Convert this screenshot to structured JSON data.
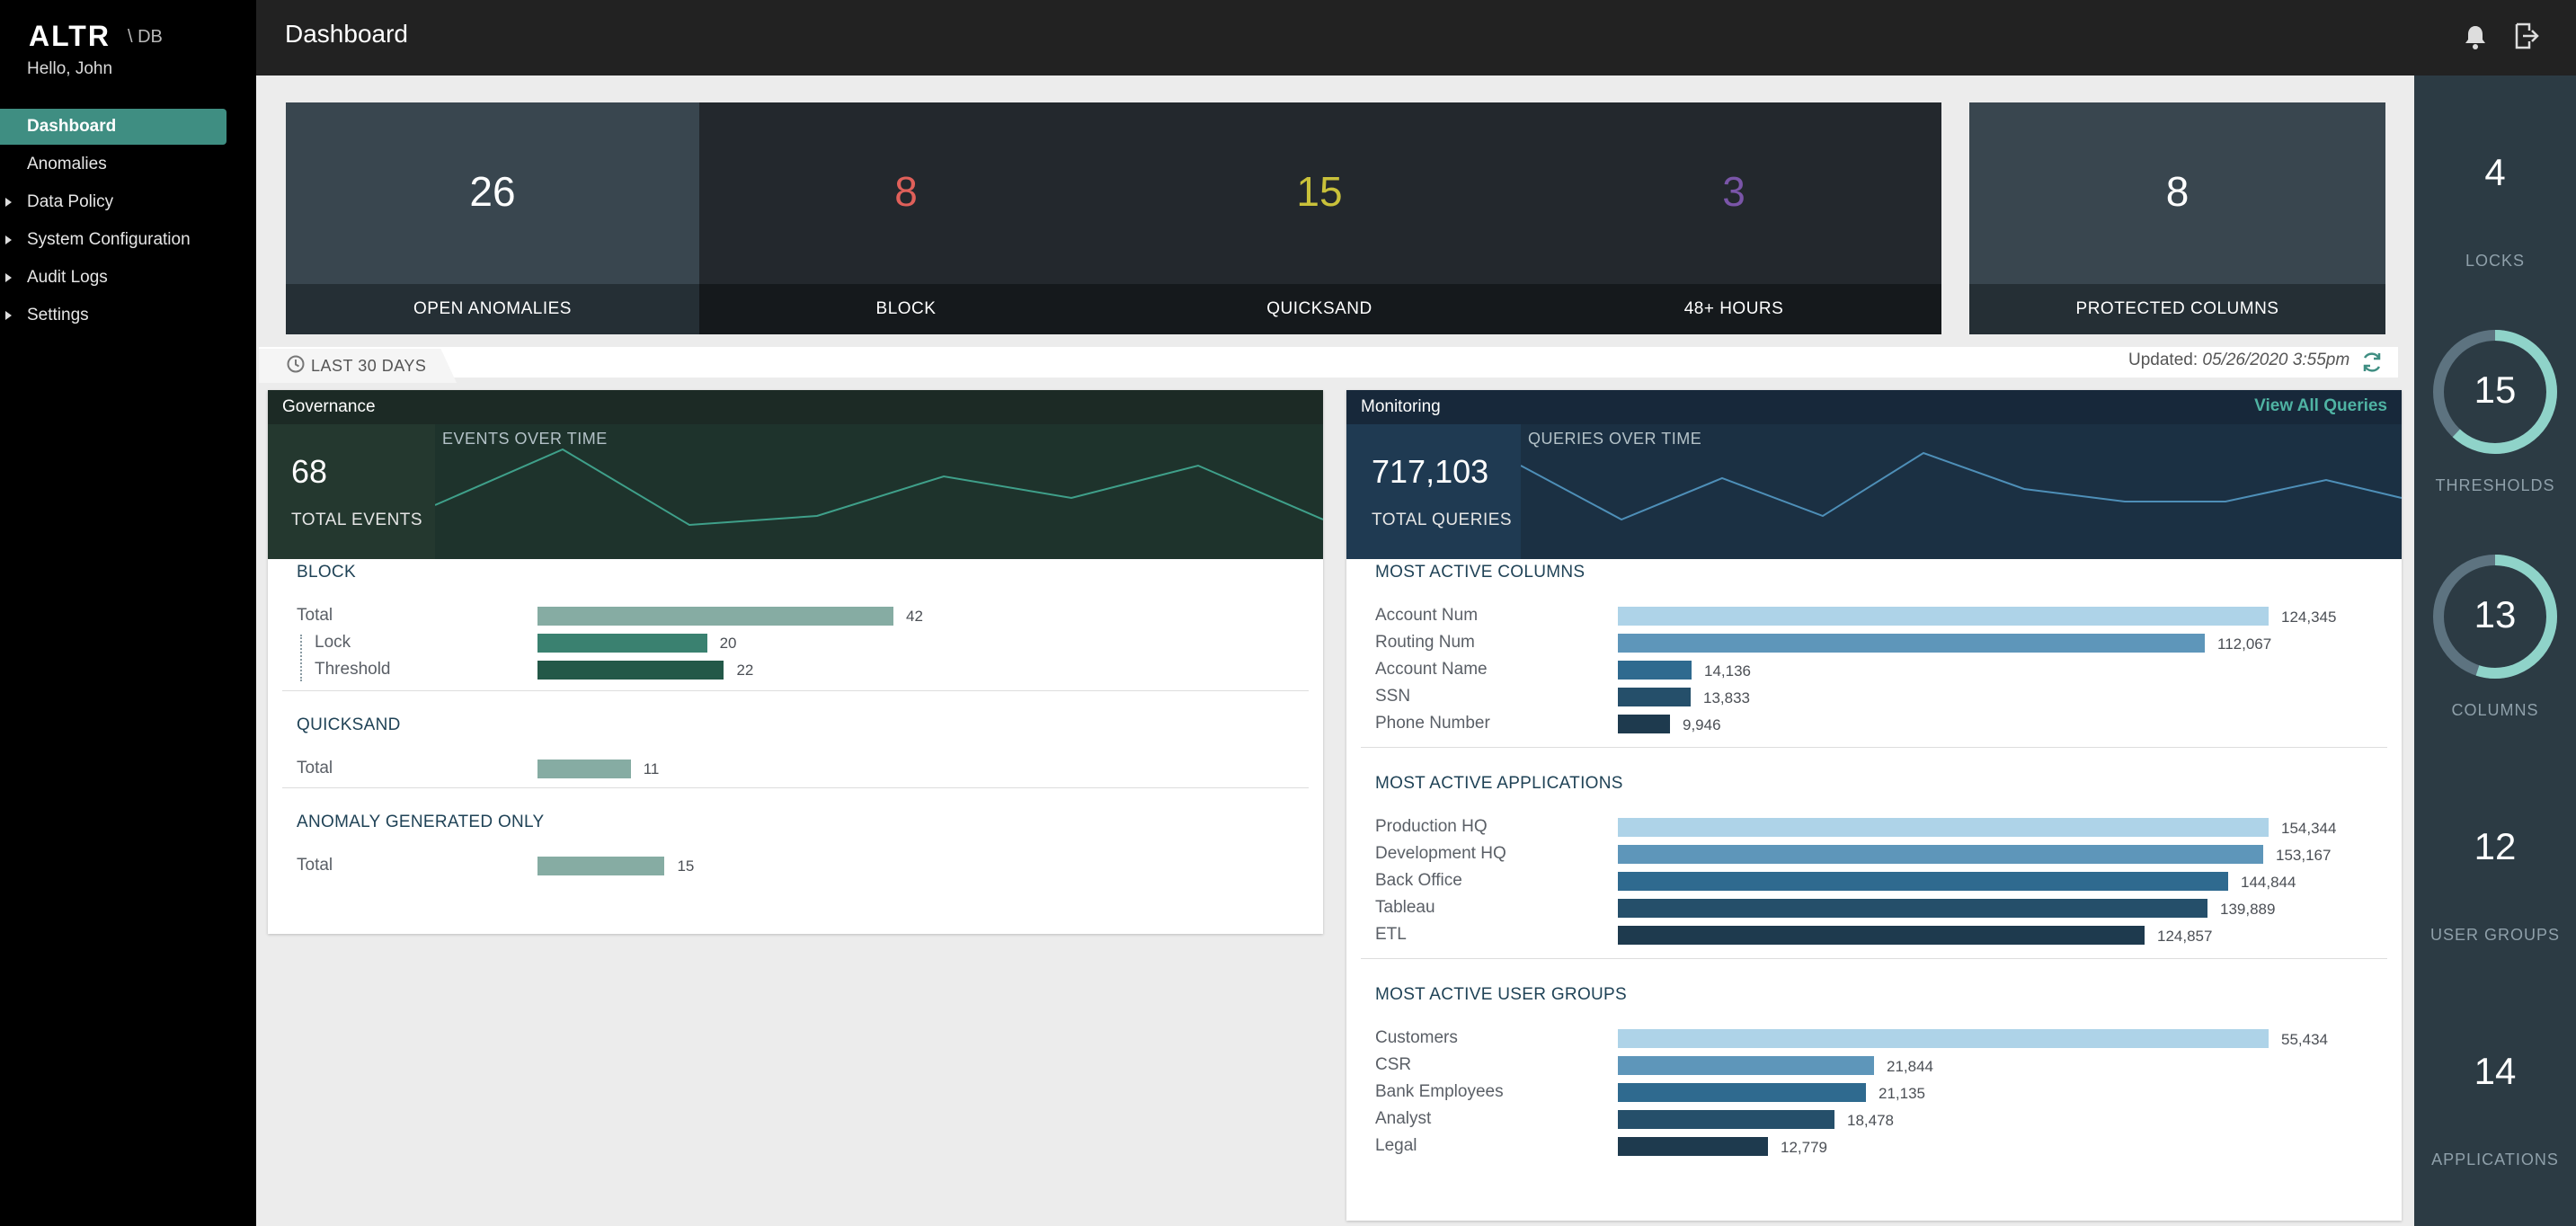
{
  "app": {
    "logo": "ALTR",
    "logo_suffix": "\\ DB",
    "greeting": "Hello, John",
    "page_title": "Dashboard"
  },
  "sidebar": {
    "items": [
      {
        "label": "Dashboard",
        "active": true,
        "expandable": false
      },
      {
        "label": "Anomalies",
        "active": false,
        "expandable": false
      },
      {
        "label": "Data Policy",
        "active": false,
        "expandable": true
      },
      {
        "label": "System Configuration",
        "active": false,
        "expandable": true
      },
      {
        "label": "Audit Logs",
        "active": false,
        "expandable": true
      },
      {
        "label": "Settings",
        "active": false,
        "expandable": true
      }
    ]
  },
  "kpis": {
    "open_anomalies": {
      "value": "26",
      "label": "OPEN ANOMALIES"
    },
    "block": {
      "value": "8",
      "label": "BLOCK",
      "color": "#e0605a"
    },
    "quicksand": {
      "value": "15",
      "label": "QUICKSAND",
      "color": "#c9c13a"
    },
    "hours48": {
      "value": "3",
      "label": "48+ HOURS",
      "color": "#7a55a8"
    },
    "protected_columns": {
      "value": "8",
      "label": "PROTECTED COLUMNS"
    }
  },
  "range": {
    "label": "LAST 30 DAYS",
    "updated_label": "Updated:",
    "updated_value": "05/26/2020 3:55pm"
  },
  "governance": {
    "title": "Governance",
    "total": "68",
    "total_label": "TOTAL EVENTS",
    "chart_label": "EVENTS OVER TIME",
    "sections": [
      {
        "title": "BLOCK",
        "rows": [
          {
            "label": "Total",
            "value": 42
          },
          {
            "label": "Lock",
            "value": 20
          },
          {
            "label": "Threshold",
            "value": 22
          }
        ]
      },
      {
        "title": "QUICKSAND",
        "rows": [
          {
            "label": "Total",
            "value": 11
          }
        ]
      },
      {
        "title": "ANOMALY GENERATED ONLY",
        "rows": [
          {
            "label": "Total",
            "value": 15
          }
        ]
      }
    ]
  },
  "monitoring": {
    "title": "Monitoring",
    "link": "View All Queries",
    "total": "717,103",
    "total_label": "TOTAL QUERIES",
    "chart_label": "QUERIES OVER TIME",
    "sections": [
      {
        "title": "MOST ACTIVE COLUMNS",
        "rows": [
          {
            "label": "Account Num",
            "value": "124,345"
          },
          {
            "label": "Routing Num",
            "value": "112,067"
          },
          {
            "label": "Account Name",
            "value": "14,136"
          },
          {
            "label": "SSN",
            "value": "13,833"
          },
          {
            "label": "Phone Number",
            "value": "9,946"
          }
        ]
      },
      {
        "title": "MOST ACTIVE APPLICATIONS",
        "rows": [
          {
            "label": "Production HQ",
            "value": "154,344"
          },
          {
            "label": "Development HQ",
            "value": "153,167"
          },
          {
            "label": "Back Office",
            "value": "144,844"
          },
          {
            "label": "Tableau",
            "value": "139,889"
          },
          {
            "label": "ETL",
            "value": "124,857"
          }
        ]
      },
      {
        "title": "MOST ACTIVE USER GROUPS",
        "rows": [
          {
            "label": "Customers",
            "value": "55,434"
          },
          {
            "label": "CSR",
            "value": "21,844"
          },
          {
            "label": "Bank Employees",
            "value": "21,135"
          },
          {
            "label": "Analyst",
            "value": "18,478"
          },
          {
            "label": "Legal",
            "value": "12,779"
          }
        ]
      }
    ]
  },
  "right_stats": [
    {
      "value": "4",
      "label": "LOCKS",
      "ring": false
    },
    {
      "value": "15",
      "label": "THRESHOLDS",
      "ring": true,
      "fill": 0.62
    },
    {
      "value": "13",
      "label": "COLUMNS",
      "ring": true,
      "fill": 0.55
    },
    {
      "value": "12",
      "label": "USER GROUPS",
      "ring": false
    },
    {
      "value": "14",
      "label": "APPLICATIONS",
      "ring": false
    }
  ],
  "colors": {
    "accent": "#3f8e82",
    "gov_dark": "#1c2a25",
    "mon_dark": "#17283a",
    "bar_light": "#aed3e8",
    "bar_dark": "#1e3a4e"
  }
}
